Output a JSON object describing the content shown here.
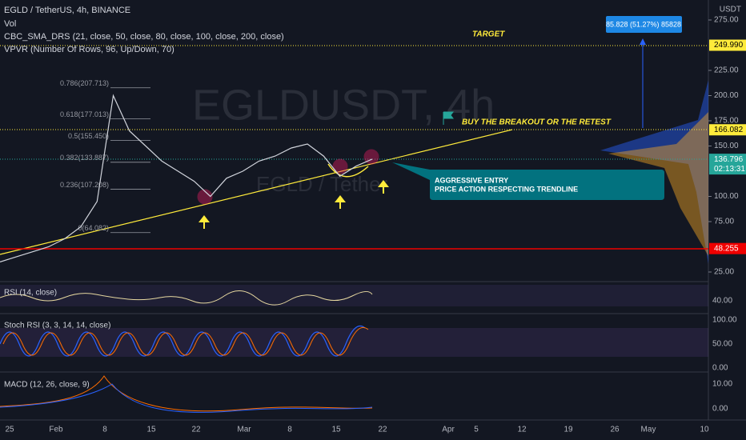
{
  "header": {
    "symbol": "EGLD / TetherUS, 4h, BINANCE",
    "indicators": [
      "Vol",
      "CBC_SMA_DRS (21, close, 50, close, 80, close, 100, close, 200, close)",
      "VPVR (Number Of Rows, 96, Up/Down, 70)"
    ]
  },
  "watermark": {
    "main": "EGLDUSDT, 4h",
    "sub": "EGLD / Tether"
  },
  "price_axis": {
    "currency": "USDT",
    "ticks": [
      {
        "value": 275,
        "label": "275.00"
      },
      {
        "value": 225,
        "label": "225.00"
      },
      {
        "value": 200,
        "label": "200.00"
      },
      {
        "value": 175,
        "label": "175.00"
      },
      {
        "value": 150,
        "label": "150.00"
      },
      {
        "value": 100,
        "label": "100.00"
      },
      {
        "value": 75,
        "label": "75.00"
      },
      {
        "value": 25,
        "label": "25.00"
      }
    ],
    "highlights": [
      {
        "value": 249.99,
        "label": "249.990",
        "color": "#ffeb3b"
      },
      {
        "value": 166.082,
        "label": "166.082",
        "color": "#ffeb3b"
      },
      {
        "value": 136.796,
        "label": "136.796",
        "color": "#26a69a",
        "countdown": "02:13:31"
      },
      {
        "value": 48.255,
        "label": "48.255",
        "color": "#f00000"
      }
    ]
  },
  "price": {
    "color": "#d1d4dc",
    "values": [
      35,
      40,
      45,
      50,
      58,
      70,
      95,
      200,
      165,
      150,
      135,
      125,
      115,
      100,
      118,
      125,
      135,
      140,
      148,
      152,
      140,
      120,
      130,
      137
    ]
  },
  "fib_levels": [
    {
      "value": 207.713,
      "label": "0.786(207.713)"
    },
    {
      "value": 177.013,
      "label": "0.618(177.013)"
    },
    {
      "value": 155.45,
      "label": "0.5(155.450)"
    },
    {
      "value": 133.887,
      "label": "0.382(133.887)"
    },
    {
      "value": 107.208,
      "label": "0.236(107.208)"
    },
    {
      "value": 64.082,
      "label": "0(64.082)"
    }
  ],
  "annotations": {
    "target": "TARGET",
    "buy": "BUY THE BREAKOUT OR THE RETEST",
    "entry": [
      "AGGRESSIVE ENTRY",
      "PRICE ACTION RESPECTING TRENDLINE"
    ],
    "measure": "85.828 (51.27%) 85828"
  },
  "panes": {
    "rsi": {
      "label": "RSI (14, close)",
      "ticks": [
        "40.00"
      ]
    },
    "stoch": {
      "label": "Stoch RSI (3, 3, 14, 14, close)",
      "ticks": [
        "100.00",
        "50.00",
        "0.00"
      ]
    },
    "macd": {
      "label": "MACD (12, 26, close, 9)",
      "ticks": [
        "10.00",
        "0.00"
      ]
    }
  },
  "time_axis": [
    "25",
    "Feb",
    "8",
    "15",
    "22",
    "Mar",
    "8",
    "15",
    "22",
    "Apr",
    "5",
    "12",
    "19",
    "26",
    "May",
    "10"
  ]
}
